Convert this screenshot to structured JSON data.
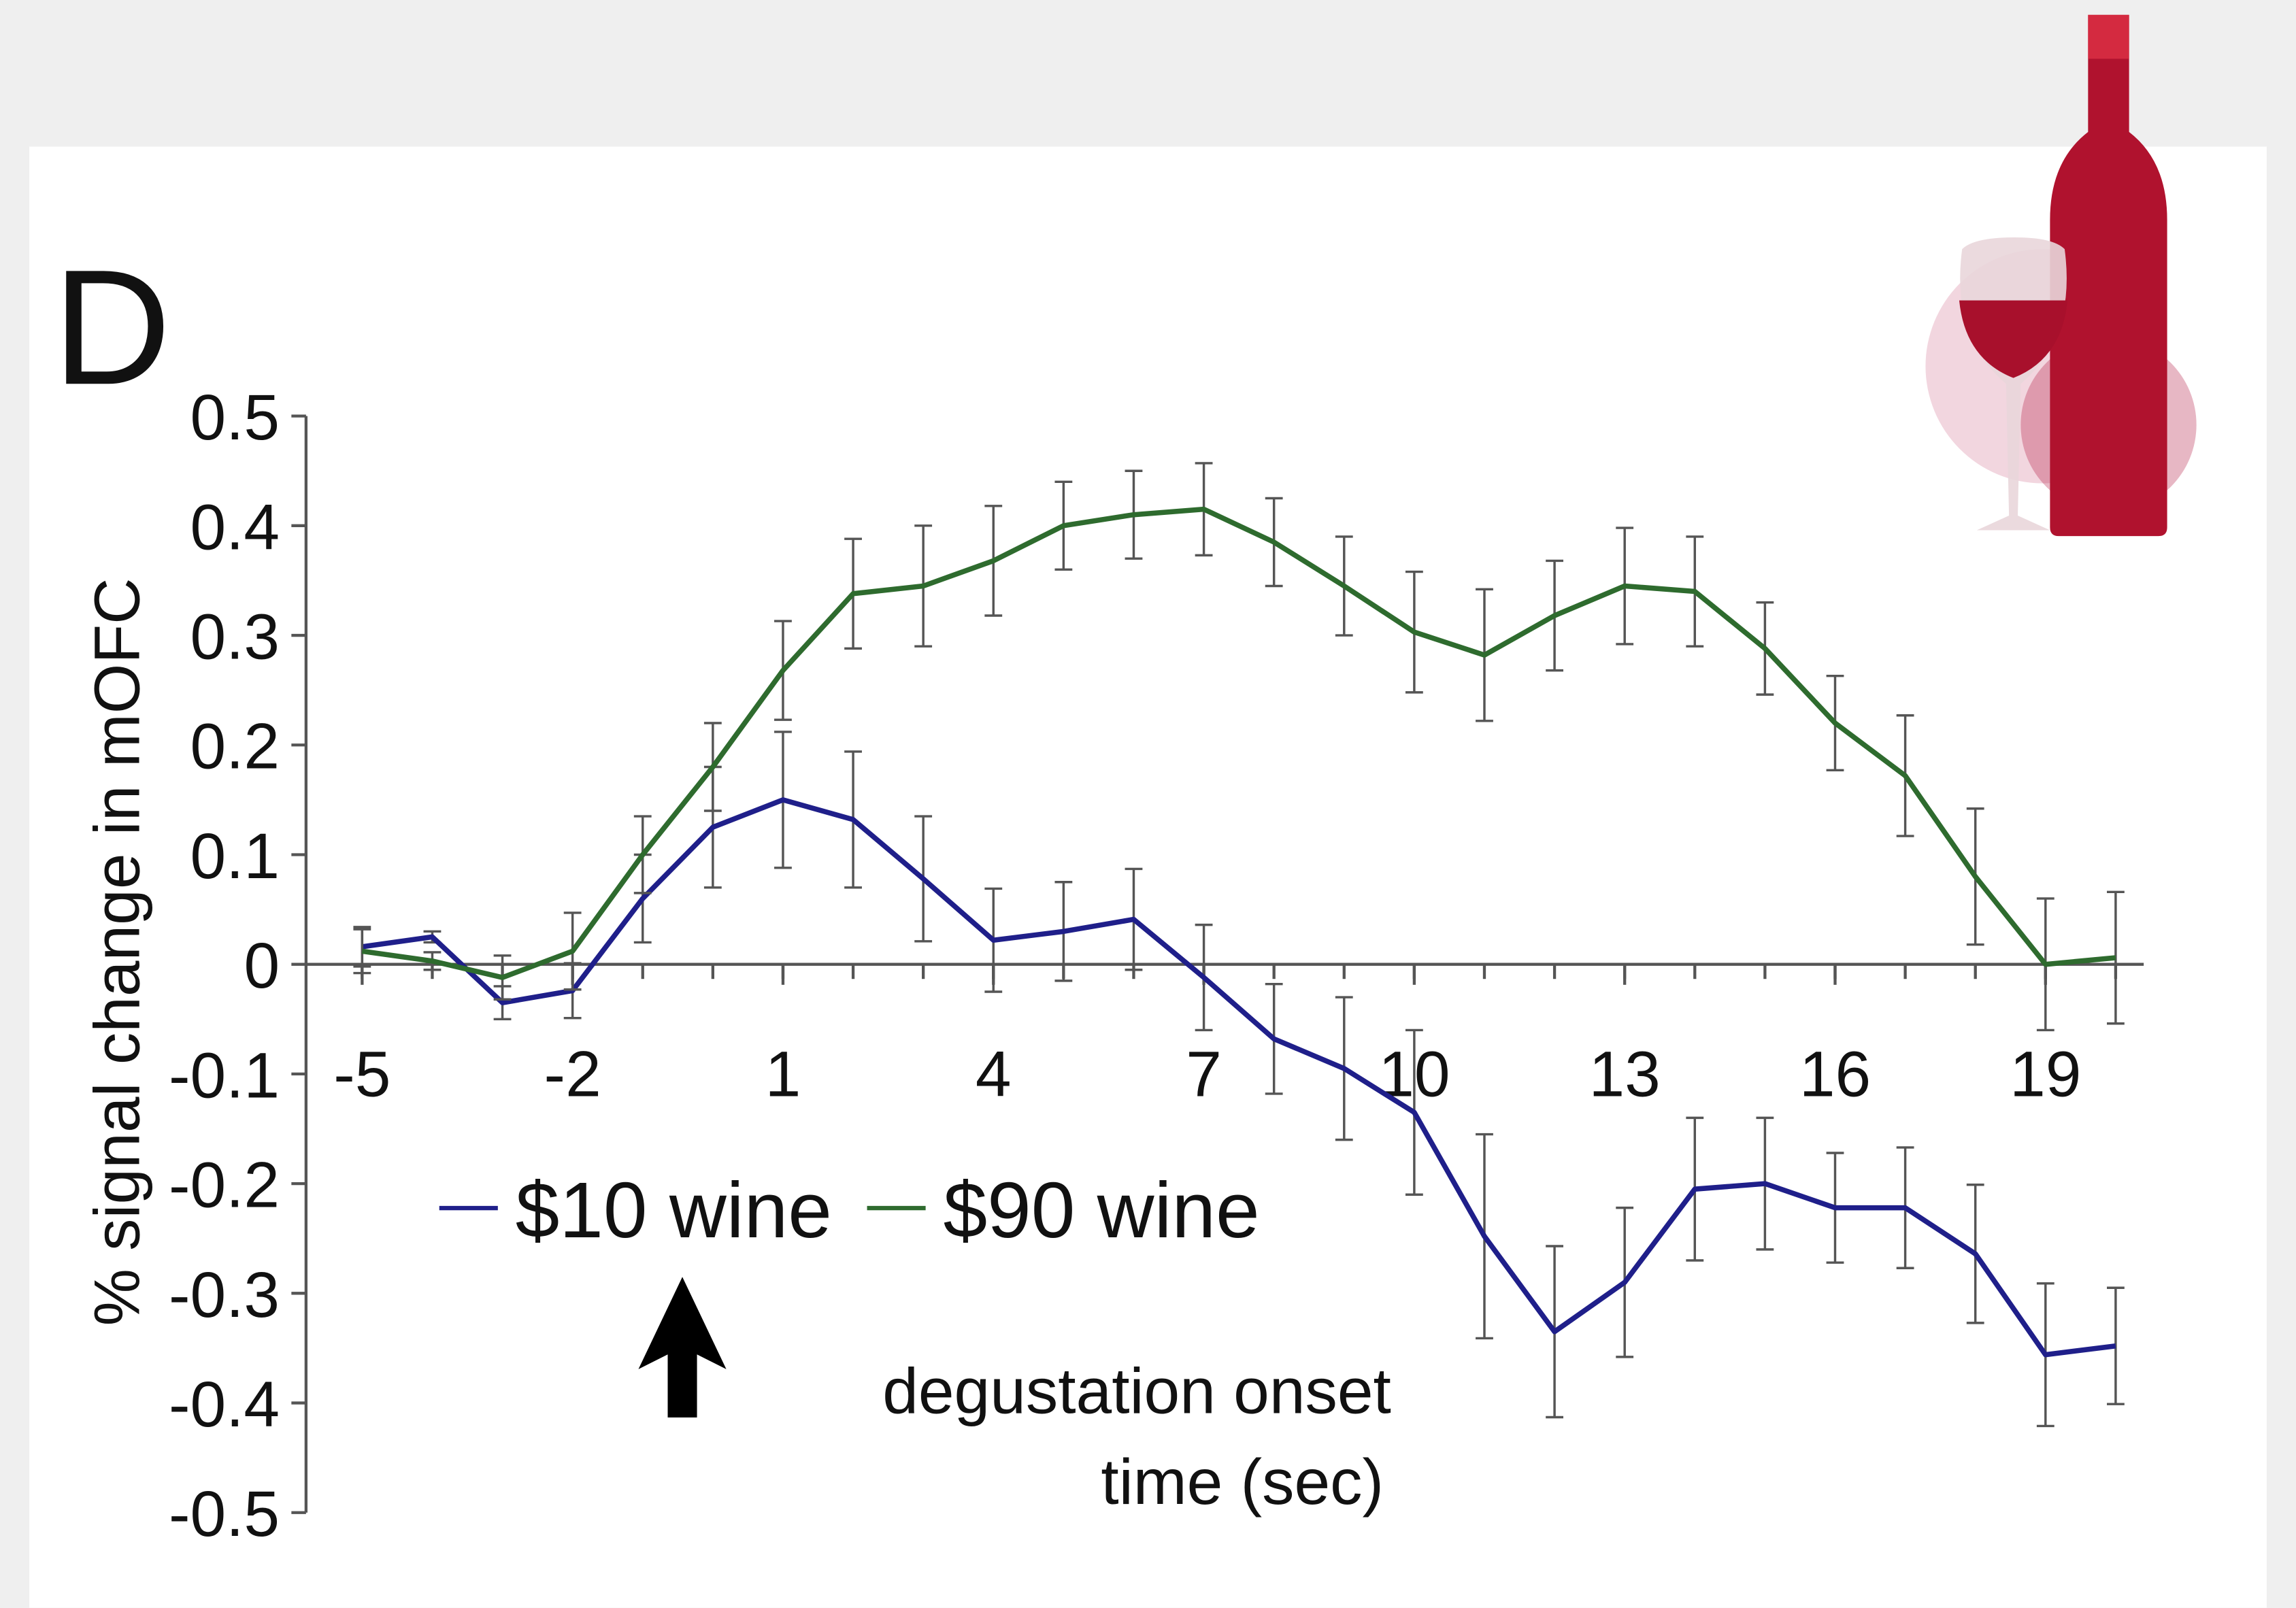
{
  "chart_data": {
    "type": "line",
    "panel_label": "D",
    "y_label": "% signal change in mOFC",
    "x_label": "time (sec)",
    "annotation": "degustation onset",
    "x": [
      -5,
      -4,
      -3,
      -2,
      -1,
      0,
      1,
      2,
      3,
      4,
      5,
      6,
      7,
      8,
      9,
      10,
      11,
      12,
      13,
      14,
      15,
      16,
      17,
      18,
      19,
      20
    ],
    "series": [
      {
        "name": "$10 wine",
        "color": "#1f1f8a",
        "values": [
          0.016,
          0.025,
          -0.035,
          -0.024,
          0.06,
          0.125,
          0.15,
          0.132,
          0.078,
          0.022,
          0.03,
          0.041,
          -0.012,
          -0.068,
          -0.095,
          -0.135,
          -0.248,
          -0.335,
          -0.29,
          -0.205,
          -0.2,
          -0.222,
          -0.222,
          -0.264,
          -0.356,
          -0.348
        ],
        "errors": [
          0.018,
          0.005,
          0.015,
          0.025,
          0.04,
          0.055,
          0.062,
          0.062,
          0.057,
          0.047,
          0.045,
          0.046,
          0.048,
          0.05,
          0.065,
          0.075,
          0.093,
          0.078,
          0.068,
          0.065,
          0.06,
          0.05,
          0.055,
          0.063,
          0.065,
          0.053
        ]
      },
      {
        "name": "$90 wine",
        "color": "#2e6b2e",
        "values": [
          0.012,
          0.003,
          -0.012,
          0.012,
          0.1,
          0.18,
          0.268,
          0.338,
          0.345,
          0.368,
          0.4,
          0.41,
          0.415,
          0.385,
          0.345,
          0.303,
          0.282,
          0.318,
          0.345,
          0.34,
          0.288,
          0.22,
          0.172,
          0.08,
          0.0,
          0.006
        ],
        "errors": [
          0.02,
          0.008,
          0.02,
          0.035,
          0.035,
          0.04,
          0.045,
          0.05,
          0.055,
          0.05,
          0.04,
          0.04,
          0.042,
          0.04,
          0.045,
          0.055,
          0.06,
          0.05,
          0.053,
          0.05,
          0.042,
          0.043,
          0.055,
          0.062,
          0.06,
          0.06
        ]
      }
    ],
    "xlim": [
      -5.8,
      20.4
    ],
    "ylim": [
      -0.5,
      0.5
    ],
    "xticks": [
      -5,
      -2,
      1,
      4,
      7,
      10,
      13,
      16,
      19
    ],
    "yticks": [
      -0.5,
      -0.4,
      -0.3,
      -0.2,
      -0.1,
      0,
      0.1,
      0.2,
      0.3,
      0.4,
      0.5
    ],
    "error_bars": true
  }
}
